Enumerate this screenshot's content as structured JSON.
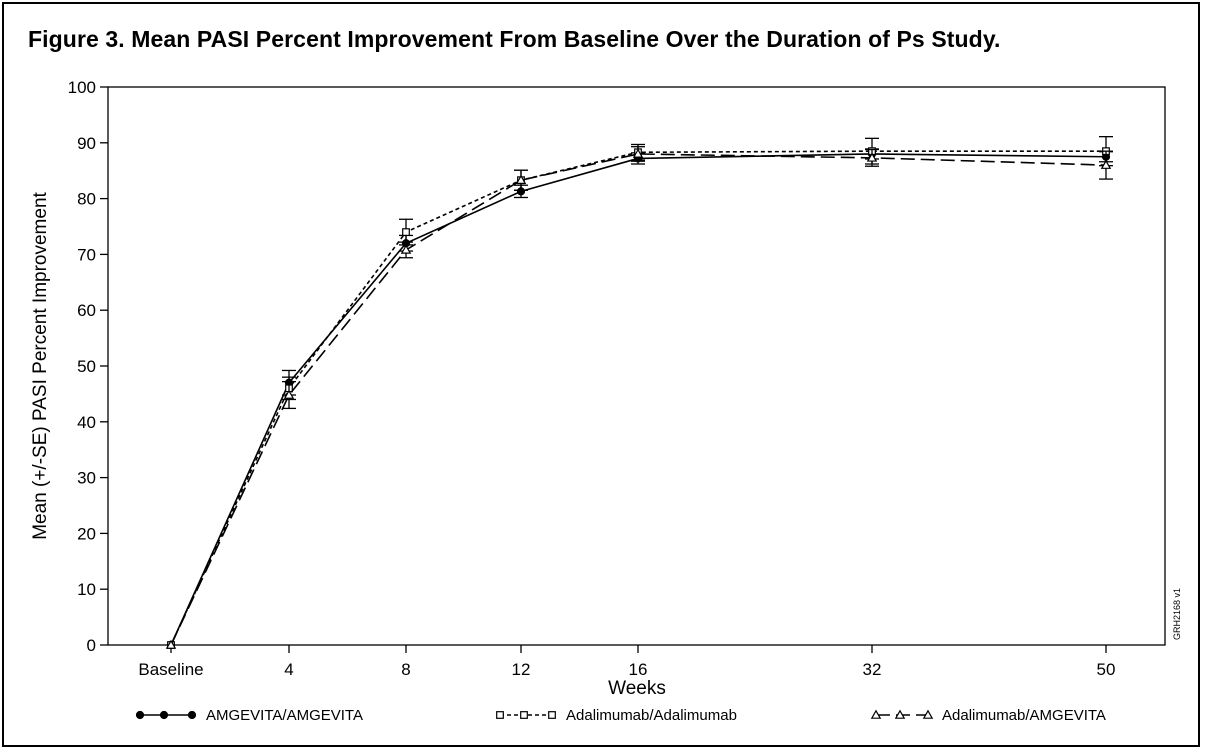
{
  "figure": {
    "title": "Figure 3. Mean PASI Percent Improvement From Baseline Over the Duration of Ps Study.",
    "code": "GRH2168 v1"
  },
  "chart_data": {
    "type": "line",
    "title": "Figure 3. Mean PASI Percent Improvement From Baseline Over the Duration of Ps Study.",
    "xlabel": "Weeks",
    "ylabel": "Mean (+/-SE) PASI Percent Improvement",
    "categories": [
      "Baseline",
      "4",
      "8",
      "12",
      "16",
      "32",
      "50"
    ],
    "ylim": [
      0,
      100
    ],
    "yticks": [
      0,
      10,
      20,
      30,
      40,
      50,
      60,
      70,
      80,
      90,
      100
    ],
    "grid": false,
    "legend_position": "bottom",
    "series": [
      {
        "name": "AMGEVITA/AMGEVITA",
        "marker": "filled-circle",
        "dash": "solid",
        "values": [
          0,
          47,
          72,
          81.3,
          87.2,
          88,
          87.5
        ],
        "se": [
          0,
          2.2,
          1.4,
          1.1,
          1.0,
          0.9,
          0.9
        ]
      },
      {
        "name": "Adalimumab/Adalimumab",
        "marker": "open-square",
        "dash": "short-dash",
        "values": [
          0,
          46,
          74,
          83.3,
          88.3,
          88.5,
          88.5
        ],
        "se": [
          0,
          2.0,
          2.3,
          1.8,
          1.4,
          2.3,
          2.6
        ]
      },
      {
        "name": "Adalimumab/AMGEVITA",
        "marker": "open-triangle",
        "dash": "long-dash",
        "values": [
          0,
          44.8,
          70.8,
          83.3,
          88,
          87.3,
          86
        ],
        "se": [
          0,
          2.4,
          1.4,
          1.8,
          1.3,
          1.5,
          2.5
        ]
      }
    ]
  }
}
